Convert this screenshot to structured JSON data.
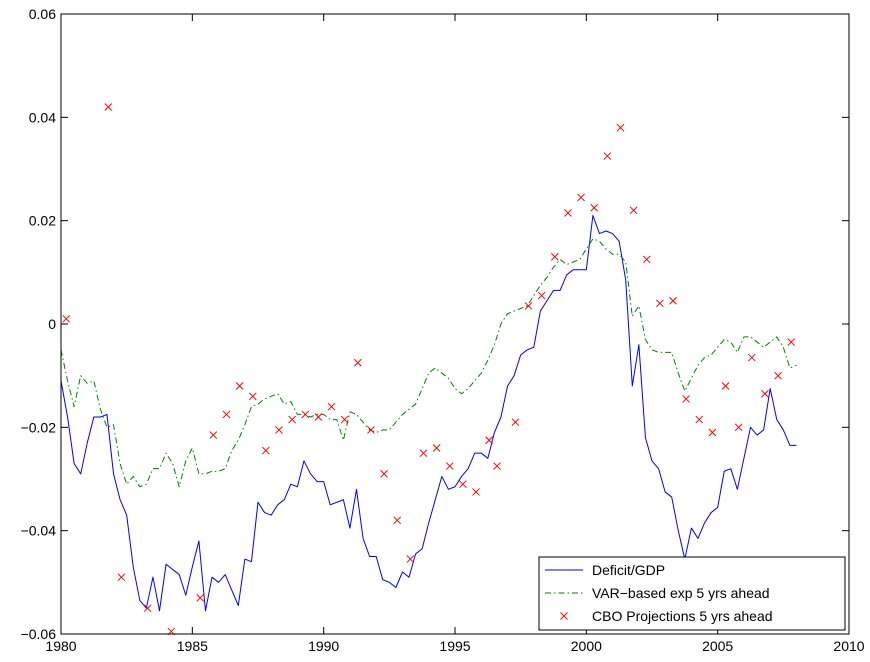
{
  "chart_data": {
    "type": "line",
    "title": "",
    "xlabel": "",
    "ylabel": "",
    "xlim": [
      1980,
      2010
    ],
    "ylim": [
      -0.06,
      0.06
    ],
    "xticks": [
      1980,
      1985,
      1990,
      1995,
      2000,
      2005,
      2010
    ],
    "xtick_labels": [
      "1980",
      "1985",
      "1990",
      "1995",
      "2000",
      "2005",
      "2010"
    ],
    "yticks": [
      -0.06,
      -0.04,
      -0.02,
      0,
      0.02,
      0.04,
      0.06
    ],
    "ytick_labels": [
      "−0.06",
      "−0.04",
      "−0.02",
      "0",
      "0.02",
      "0.04",
      "0.06"
    ],
    "grid": false,
    "legend_position": "bottom-right",
    "series": [
      {
        "name": "Deficit/GDP",
        "style": "solid-line",
        "color": "#0000ff",
        "x": [
          1980.0,
          1980.25,
          1980.5,
          1980.75,
          1981.0,
          1981.25,
          1981.5,
          1981.75,
          1982.0,
          1982.25,
          1982.5,
          1982.75,
          1983.0,
          1983.25,
          1983.5,
          1983.75,
          1984.0,
          1984.25,
          1984.5,
          1984.75,
          1985.0,
          1985.25,
          1985.5,
          1985.75,
          1986.0,
          1986.25,
          1986.5,
          1986.75,
          1987.0,
          1987.25,
          1987.5,
          1987.75,
          1988.0,
          1988.25,
          1988.5,
          1988.75,
          1989.0,
          1989.25,
          1989.5,
          1989.75,
          1990.0,
          1990.25,
          1990.5,
          1990.75,
          1991.0,
          1991.25,
          1991.5,
          1991.75,
          1992.0,
          1992.25,
          1992.5,
          1992.75,
          1993.0,
          1993.25,
          1993.5,
          1993.75,
          1994.0,
          1994.25,
          1994.5,
          1994.75,
          1995.0,
          1995.25,
          1995.5,
          1995.75,
          1996.0,
          1996.25,
          1996.5,
          1996.75,
          1997.0,
          1997.25,
          1997.5,
          1997.75,
          1998.0,
          1998.25,
          1998.5,
          1998.75,
          1999.0,
          1999.25,
          1999.5,
          1999.75,
          2000.0,
          2000.25,
          2000.5,
          2000.75,
          2001.0,
          2001.25,
          2001.5,
          2001.75,
          2002.0,
          2002.25,
          2002.5,
          2002.75,
          2003.0,
          2003.25,
          2003.5,
          2003.75,
          2004.0,
          2004.25,
          2004.5,
          2004.75,
          2005.0,
          2005.25,
          2005.5,
          2005.75,
          2006.0,
          2006.25,
          2006.5,
          2006.75,
          2007.0,
          2007.25,
          2007.5,
          2007.75,
          2008.0
        ],
        "values": [
          -0.011,
          -0.018,
          -0.027,
          -0.029,
          -0.023,
          -0.018,
          -0.018,
          -0.0175,
          -0.029,
          -0.034,
          -0.037,
          -0.047,
          -0.0535,
          -0.055,
          -0.049,
          -0.0555,
          -0.0465,
          -0.0475,
          -0.0485,
          -0.0525,
          -0.047,
          -0.042,
          -0.0555,
          -0.049,
          -0.05,
          -0.0485,
          -0.0515,
          -0.0545,
          -0.0455,
          -0.046,
          -0.0345,
          -0.0365,
          -0.037,
          -0.035,
          -0.034,
          -0.031,
          -0.0315,
          -0.0265,
          -0.029,
          -0.0305,
          -0.0305,
          -0.035,
          -0.0345,
          -0.034,
          -0.0395,
          -0.032,
          -0.0415,
          -0.045,
          -0.045,
          -0.0495,
          -0.05,
          -0.051,
          -0.048,
          -0.049,
          -0.0445,
          -0.0435,
          -0.0385,
          -0.034,
          -0.0295,
          -0.032,
          -0.0315,
          -0.0295,
          -0.028,
          -0.025,
          -0.025,
          -0.026,
          -0.021,
          -0.018,
          -0.012,
          -0.01,
          -0.006,
          -0.005,
          -0.0045,
          0.0025,
          0.0045,
          0.0065,
          0.0065,
          0.0095,
          0.0105,
          0.0105,
          0.0105,
          0.021,
          0.0175,
          0.018,
          0.0175,
          0.016,
          0.0085,
          -0.012,
          -0.004,
          -0.022,
          -0.0265,
          -0.028,
          -0.0325,
          -0.0335,
          -0.04,
          -0.0455,
          -0.0395,
          -0.0415,
          -0.0385,
          -0.0365,
          -0.0355,
          -0.0285,
          -0.028,
          -0.032,
          -0.026,
          -0.02,
          -0.0215,
          -0.0205,
          -0.0125,
          -0.0185,
          -0.0205,
          -0.0235,
          -0.0235
        ]
      },
      {
        "name": "VAR−based exp 5 yrs ahead",
        "style": "dash-dot-line",
        "color": "#007f00",
        "x": [
          1980.0,
          1980.25,
          1980.5,
          1980.75,
          1981.0,
          1981.25,
          1981.5,
          1981.75,
          1982.0,
          1982.25,
          1982.5,
          1982.75,
          1983.0,
          1983.25,
          1983.5,
          1983.75,
          1984.0,
          1984.25,
          1984.5,
          1984.75,
          1985.0,
          1985.25,
          1985.5,
          1985.75,
          1986.0,
          1986.25,
          1986.5,
          1986.75,
          1987.0,
          1987.25,
          1987.5,
          1987.75,
          1988.0,
          1988.25,
          1988.5,
          1988.75,
          1989.0,
          1989.25,
          1989.5,
          1989.75,
          1990.0,
          1990.25,
          1990.5,
          1990.75,
          1991.0,
          1991.25,
          1991.5,
          1991.75,
          1992.0,
          1992.25,
          1992.5,
          1992.75,
          1993.0,
          1993.25,
          1993.5,
          1993.75,
          1994.0,
          1994.25,
          1994.5,
          1994.75,
          1995.0,
          1995.25,
          1995.5,
          1995.75,
          1996.0,
          1996.25,
          1996.5,
          1996.75,
          1997.0,
          1997.25,
          1997.5,
          1997.75,
          1998.0,
          1998.25,
          1998.5,
          1998.75,
          1999.0,
          1999.25,
          1999.5,
          1999.75,
          2000.0,
          2000.25,
          2000.5,
          2000.75,
          2001.0,
          2001.25,
          2001.5,
          2001.75,
          2002.0,
          2002.25,
          2002.5,
          2002.75,
          2003.0,
          2003.25,
          2003.5,
          2003.75,
          2004.0,
          2004.25,
          2004.5,
          2004.75,
          2005.0,
          2005.25,
          2005.5,
          2005.75,
          2006.0,
          2006.25,
          2006.5,
          2006.75,
          2007.0,
          2007.25,
          2007.5,
          2007.75,
          2008.0
        ],
        "values": [
          -0.005,
          -0.011,
          -0.016,
          -0.01,
          -0.0115,
          -0.011,
          -0.0165,
          -0.02,
          -0.0195,
          -0.027,
          -0.031,
          -0.0295,
          -0.0315,
          -0.031,
          -0.028,
          -0.028,
          -0.025,
          -0.027,
          -0.0315,
          -0.0265,
          -0.024,
          -0.029,
          -0.029,
          -0.0285,
          -0.0285,
          -0.028,
          -0.0245,
          -0.0225,
          -0.0195,
          -0.016,
          -0.0155,
          -0.0145,
          -0.014,
          -0.0135,
          -0.0155,
          -0.015,
          -0.0175,
          -0.0175,
          -0.018,
          -0.0175,
          -0.0175,
          -0.0185,
          -0.0185,
          -0.0225,
          -0.017,
          -0.0175,
          -0.019,
          -0.0205,
          -0.021,
          -0.0205,
          -0.0205,
          -0.019,
          -0.0175,
          -0.0165,
          -0.0155,
          -0.0125,
          -0.0095,
          -0.0085,
          -0.0095,
          -0.0105,
          -0.0125,
          -0.0135,
          -0.0125,
          -0.011,
          -0.0095,
          -0.007,
          -0.004,
          0.0,
          0.002,
          0.0025,
          0.003,
          0.0035,
          0.0055,
          0.0075,
          0.009,
          0.011,
          0.0125,
          0.0115,
          0.012,
          0.0125,
          0.0145,
          0.0165,
          0.016,
          0.0145,
          0.0135,
          0.0135,
          0.012,
          0.0015,
          0.0035,
          -0.003,
          -0.005,
          -0.0055,
          -0.0055,
          -0.0055,
          -0.0095,
          -0.013,
          -0.0105,
          -0.008,
          -0.0065,
          -0.006,
          -0.0045,
          -0.003,
          -0.0035,
          -0.0055,
          -0.0025,
          -0.0025,
          -0.0035,
          -0.0045,
          -0.0035,
          -0.0025,
          -0.0045,
          -0.0085,
          -0.008
        ]
      },
      {
        "name": "CBO Projections 5 yrs ahead",
        "style": "x-markers",
        "color": "#ff0000",
        "x": [
          1980.2,
          1981.8,
          1982.3,
          1983.3,
          1984.2,
          1985.3,
          1985.8,
          1986.3,
          1986.8,
          1987.3,
          1987.8,
          1988.3,
          1988.8,
          1989.3,
          1989.8,
          1990.3,
          1990.8,
          1991.3,
          1991.8,
          1992.3,
          1992.8,
          1993.3,
          1993.8,
          1994.3,
          1994.8,
          1995.3,
          1995.8,
          1996.3,
          1996.6,
          1997.3,
          1997.8,
          1998.3,
          1998.8,
          1999.3,
          1999.8,
          2000.3,
          2000.8,
          2001.3,
          2001.8,
          2002.3,
          2002.8,
          2003.3,
          2003.8,
          2004.3,
          2004.8,
          2005.3,
          2005.8,
          2006.3,
          2006.8,
          2007.3,
          2007.8
        ],
        "values": [
          0.001,
          0.042,
          -0.049,
          -0.055,
          -0.0595,
          -0.053,
          -0.0215,
          -0.0175,
          -0.012,
          -0.014,
          -0.0245,
          -0.0205,
          -0.0185,
          -0.0175,
          -0.018,
          -0.016,
          -0.0185,
          -0.0075,
          -0.0205,
          -0.029,
          -0.038,
          -0.0455,
          -0.025,
          -0.024,
          -0.0275,
          -0.031,
          -0.0325,
          -0.0225,
          -0.0275,
          -0.019,
          0.0035,
          0.0055,
          0.013,
          0.0215,
          0.0245,
          0.0225,
          0.0325,
          0.038,
          0.022,
          0.0125,
          0.004,
          0.0045,
          -0.0145,
          -0.0185,
          -0.021,
          -0.012,
          -0.02,
          -0.0065,
          -0.0135,
          -0.01,
          -0.0035
        ]
      }
    ]
  }
}
